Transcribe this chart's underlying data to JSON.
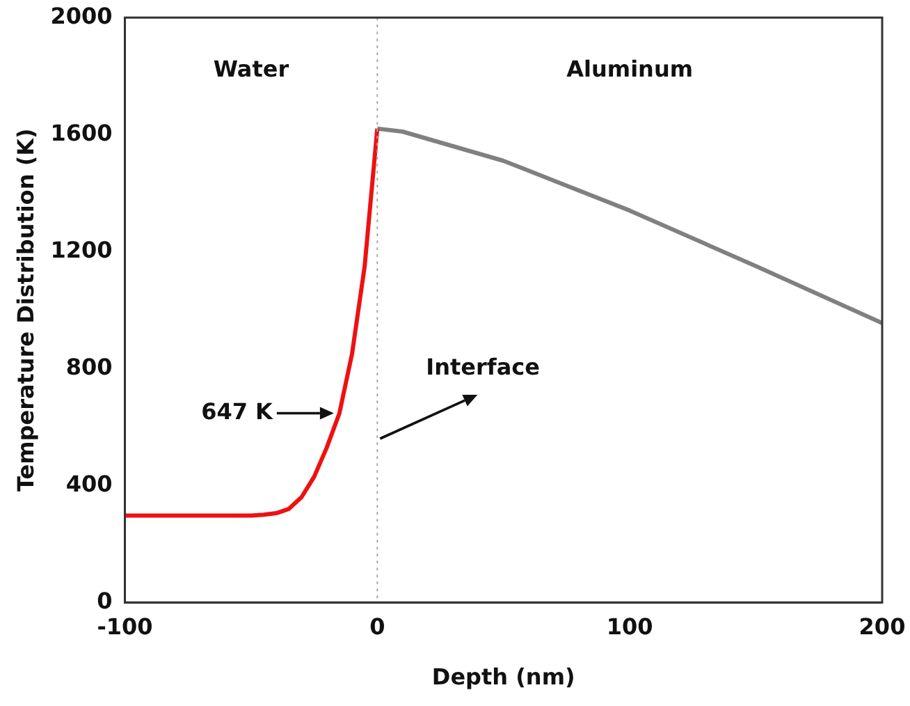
{
  "chart_data": {
    "type": "line",
    "xlabel": "Depth (nm)",
    "ylabel": "Temperature Distribution (K)",
    "xlim": [
      -100,
      200
    ],
    "xticks": [
      -100,
      0,
      100,
      200
    ],
    "ylim": [
      0,
      2000
    ],
    "yticks": [
      0,
      400,
      800,
      1200,
      1600,
      2000
    ],
    "grid": false,
    "legend": false,
    "marker": "none",
    "line_style": "solid",
    "series": [
      {
        "color": "#ee1111",
        "x": [
          -100,
          -50,
          -45,
          -40,
          -35,
          -30,
          -25,
          -20,
          -15,
          -10,
          -5,
          0
        ],
        "values": [
          297,
          297,
          300,
          305,
          320,
          360,
          430,
          530,
          647,
          850,
          1150,
          1620
        ]
      },
      {
        "color": "#808080",
        "x": [
          0,
          10,
          50,
          100,
          150,
          200
        ],
        "values": [
          1620,
          1610,
          1510,
          1340,
          1150,
          955
        ]
      }
    ],
    "ref_lines": [
      {
        "axis": "x",
        "value": 0,
        "label": "Interface",
        "color": "#aaaaaa",
        "line_style": "dotted"
      }
    ],
    "annotations": [
      {
        "text": "647 K",
        "x": -15,
        "y": 647
      },
      "Water",
      "Aluminum"
    ]
  }
}
